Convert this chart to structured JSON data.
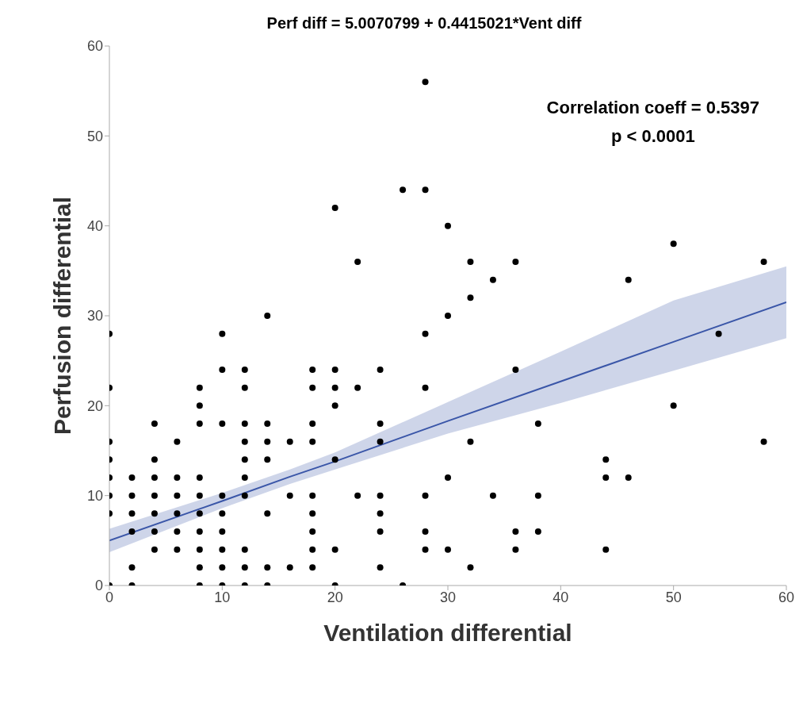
{
  "chart_data": {
    "type": "scatter",
    "title": "Perf diff = 5.0070799 + 0.4415021*Vent diff",
    "xlabel": "Ventilation differential",
    "ylabel": "Perfusion differential",
    "annotations": [
      "Correlation coeff = 0.5397",
      "p < 0.0001"
    ],
    "xlim": [
      0,
      60
    ],
    "xticks": [
      0,
      10,
      20,
      30,
      40,
      50,
      60
    ],
    "ylim": [
      0,
      60
    ],
    "yticks": [
      0,
      10,
      20,
      30,
      40,
      50,
      60
    ],
    "grid": false,
    "legend": false,
    "marker": "circle",
    "series": [
      {
        "color": "#000000",
        "x": [
          0,
          0,
          0,
          0,
          0,
          0,
          0,
          0,
          2,
          2,
          2,
          2,
          2,
          2,
          4,
          4,
          4,
          4,
          4,
          4,
          4,
          6,
          6,
          6,
          6,
          6,
          6,
          8,
          8,
          8,
          8,
          8,
          8,
          8,
          8,
          8,
          8,
          10,
          10,
          10,
          10,
          10,
          10,
          10,
          10,
          10,
          12,
          12,
          12,
          12,
          12,
          12,
          12,
          12,
          12,
          12,
          14,
          14,
          14,
          14,
          14,
          14,
          14,
          16,
          16,
          16,
          18,
          18,
          18,
          18,
          18,
          18,
          18,
          18,
          18,
          20,
          20,
          20,
          20,
          20,
          20,
          20,
          22,
          22,
          22,
          24,
          24,
          24,
          24,
          24,
          24,
          24,
          26,
          26,
          28,
          28,
          28,
          28,
          28,
          28,
          28,
          30,
          30,
          30,
          30,
          32,
          32,
          32,
          32,
          34,
          34,
          36,
          36,
          36,
          36,
          38,
          38,
          38,
          44,
          44,
          44,
          46,
          46,
          50,
          50,
          54,
          58,
          58
        ],
        "values": [
          28,
          22,
          16,
          14,
          12,
          10,
          8,
          0,
          12,
          10,
          8,
          6,
          2,
          0,
          18,
          14,
          12,
          10,
          8,
          6,
          4,
          16,
          12,
          10,
          8,
          6,
          4,
          22,
          20,
          18,
          12,
          10,
          8,
          6,
          4,
          2,
          0,
          28,
          24,
          18,
          10,
          8,
          6,
          4,
          2,
          0,
          24,
          22,
          18,
          16,
          14,
          12,
          10,
          4,
          2,
          0,
          30,
          18,
          16,
          14,
          8,
          2,
          0,
          16,
          10,
          2,
          24,
          22,
          18,
          16,
          10,
          8,
          6,
          4,
          2,
          42,
          24,
          22,
          20,
          14,
          4,
          0,
          36,
          22,
          10,
          24,
          18,
          16,
          10,
          8,
          6,
          2,
          44,
          0,
          56,
          44,
          28,
          22,
          10,
          6,
          4,
          40,
          30,
          12,
          4,
          36,
          32,
          16,
          2,
          34,
          10,
          36,
          24,
          6,
          4,
          18,
          10,
          6,
          14,
          12,
          4,
          34,
          12,
          38,
          20,
          28,
          36,
          16
        ]
      },
      {
        "type": "line",
        "color": "#3a56a8",
        "line_style": "solid",
        "marker": "none",
        "x": [
          0,
          10,
          16,
          20,
          30,
          40,
          50,
          60
        ],
        "values": [
          5.0,
          9.4,
          12.1,
          13.8,
          18.3,
          22.7,
          27.1,
          31.5
        ],
        "lower": [
          3.7,
          8.6,
          11.3,
          12.9,
          16.9,
          20.3,
          23.9,
          27.5
        ],
        "upper": [
          6.3,
          10.3,
          12.9,
          14.8,
          20.4,
          26.0,
          31.7,
          35.5
        ]
      }
    ]
  }
}
